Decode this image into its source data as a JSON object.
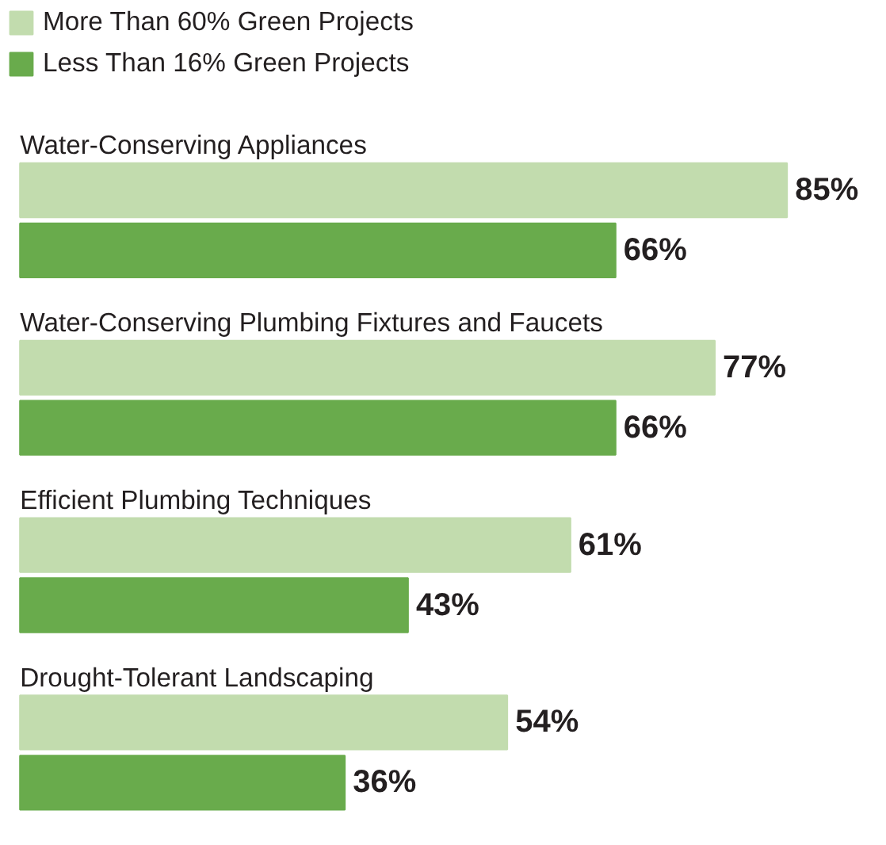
{
  "chart_data": {
    "type": "bar",
    "orientation": "horizontal",
    "categories": [
      "Water-Conserving Appliances",
      "Water-Conserving Plumbing Fixtures and Faucets",
      "Efficient Plumbing Techniques",
      "Drought-Tolerant Landscaping"
    ],
    "series": [
      {
        "name": "More Than 60% Green Projects",
        "color": "#c2dcae",
        "values": [
          85,
          77,
          61,
          54
        ],
        "value_labels": [
          "85%",
          "77%",
          "61%",
          "54%"
        ]
      },
      {
        "name": "Less Than 16% Green Projects",
        "color": "#69ab4c",
        "values": [
          66,
          66,
          43,
          36
        ],
        "value_labels": [
          "66%",
          "66%",
          "43%",
          "36%"
        ]
      }
    ],
    "legend": "top left"
  }
}
